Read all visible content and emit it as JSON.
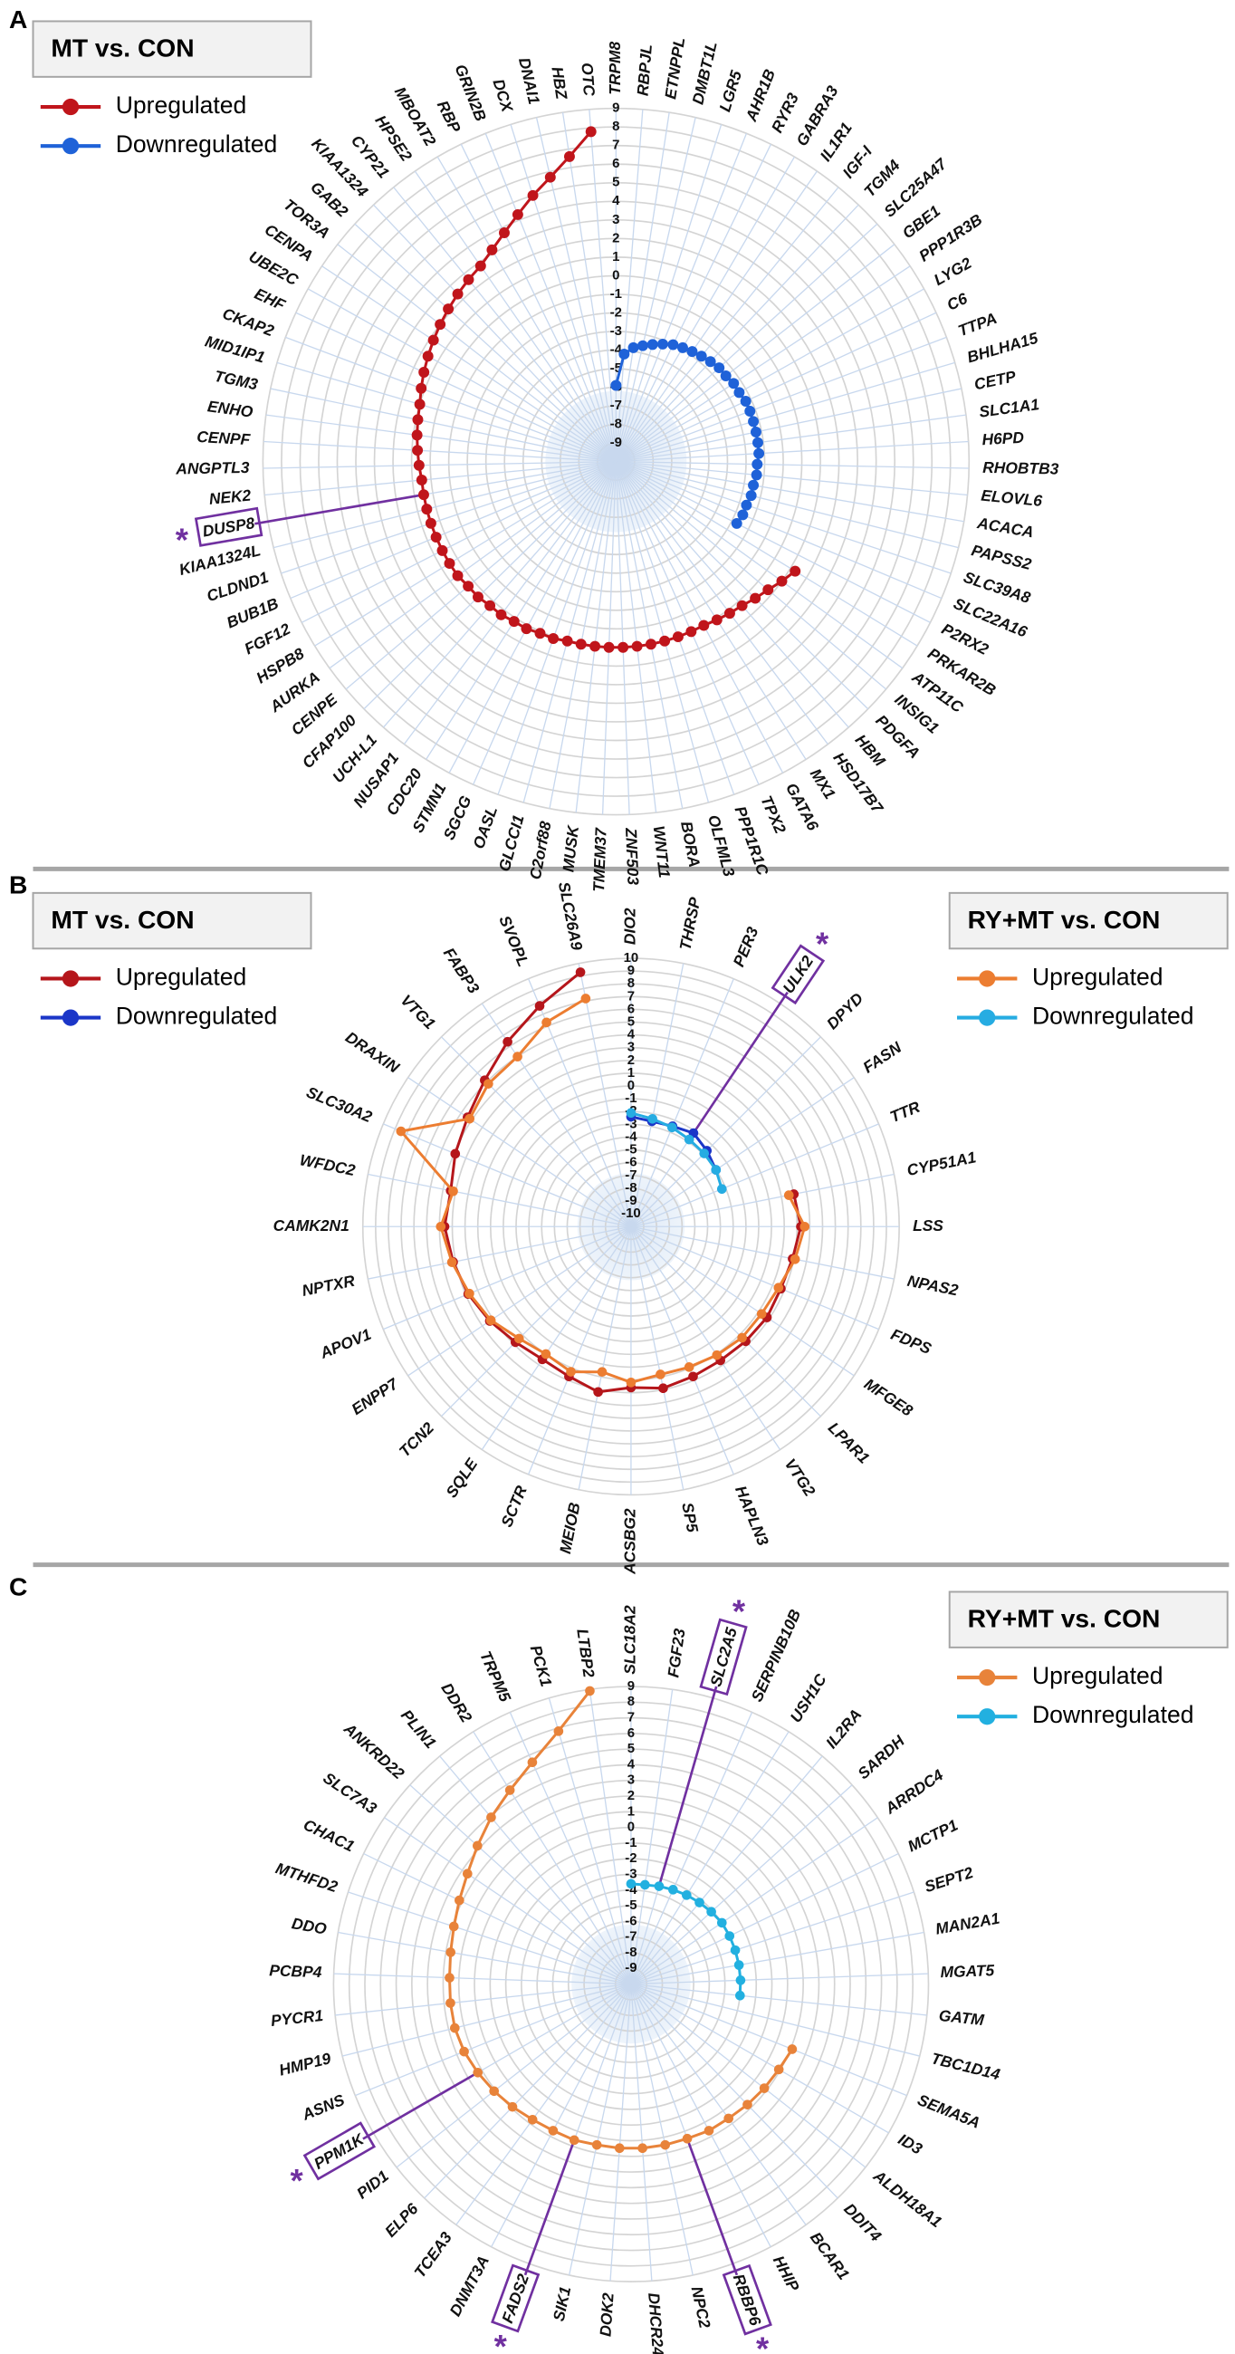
{
  "chart_data": [
    {
      "type": "radar",
      "panel": "A",
      "ylim": [
        -10,
        9
      ],
      "yticks": [
        9,
        8,
        7,
        6,
        5,
        4,
        3,
        2,
        1,
        0,
        -1,
        -2,
        -3,
        -4,
        -5,
        -6,
        -7,
        -8,
        -9
      ],
      "categories": [
        "TRPM8",
        "RBPJL",
        "ETNPPL",
        "DMBT1L",
        "LGR5",
        "AHR1B",
        "RYR3",
        "GABRA3",
        "IL1R1",
        "IGF-I",
        "TGM4",
        "SLC25A47",
        "GBE1",
        "PPP1R3B",
        "LYG2",
        "C6",
        "TTPA",
        "BHLHA15",
        "CETP",
        "SLC1A1",
        "H6PD",
        "RHOBTB3",
        "ELOVL6",
        "ACACA",
        "PAPSS2",
        "SLC39A8",
        "SLC22A16",
        "P2RX2",
        "PRKAR2B",
        "ATP11C",
        "INSIG1",
        "PDGFA",
        "HBM",
        "HSD17B7",
        "MX1",
        "GATA6",
        "TPX2",
        "PPP1R1C",
        "OLFML3",
        "BORA",
        "WNT11",
        "ZNF503",
        "TMEM37",
        "MUSK",
        "C2orf88",
        "GLCCI1",
        "OASL",
        "SGCG",
        "STMN1",
        "CDC20",
        "NUSAP1",
        "UCH-L1",
        "CFAP100",
        "CENPE",
        "AURKA",
        "HSPB8",
        "FGF12",
        "BUB1B",
        "CLDND1",
        "KIAA1324L",
        "DUSP8",
        "NEK2",
        "ANGPTL3",
        "CENPF",
        "ENHO",
        "TGM3",
        "MID1IP1",
        "CKAP2",
        "EHF",
        "UBE2C",
        "CENPA",
        "TOR3A",
        "GAB2",
        "KIAA1324",
        "CYP21",
        "HPSE2",
        "MBOAT2",
        "RBP",
        "GRIN2B",
        "DCX",
        "DNAI1",
        "HBZ",
        "OTC"
      ],
      "highlight": [
        "DUSP8"
      ],
      "highlight_marker": "*",
      "groups": [
        {
          "title": "MT vs. CON",
          "corner": "top-left",
          "series": [
            {
              "name": "Upregulated",
              "color": "#c0151b",
              "values": [
                null,
                null,
                null,
                null,
                null,
                null,
                null,
                null,
                null,
                null,
                null,
                null,
                null,
                null,
                null,
                null,
                null,
                null,
                null,
                null,
                null,
                null,
                null,
                null,
                null,
                null,
                null,
                null,
                1.3,
                1.0,
                0.7,
                0.5,
                0.3,
                0.2,
                0.1,
                0,
                0,
                0,
                0,
                0,
                0,
                0,
                0,
                0,
                0,
                0,
                0.1,
                0.1,
                0.2,
                0.2,
                0.3,
                0.3,
                0.4,
                0.4,
                0.5,
                0.5,
                0.5,
                0.5,
                0.5,
                0.5,
                0.5,
                0.5,
                0.6,
                0.7,
                0.8,
                0.9,
                1.0,
                1.2,
                1.4,
                1.6,
                1.8,
                2.0,
                2.2,
                2.4,
                2.6,
                2.8,
                3.2,
                3.7,
                4.3,
                5.0,
                5.7,
                6.6,
                7.8
              ]
            },
            {
              "name": "Downregulated",
              "color": "#1f62d8",
              "values": [
                -5.9,
                -4.2,
                -3.8,
                -3.6,
                -3.4,
                -3.2,
                -3.0,
                -2.9,
                -2.8,
                -2.7,
                -2.6,
                -2.5,
                -2.5,
                -2.4,
                -2.4,
                -2.3,
                -2.3,
                -2.3,
                -2.3,
                -2.3,
                -2.3,
                -2.4,
                -2.4,
                -2.5,
                -2.5,
                -2.6,
                -2.6,
                -2.7,
                null,
                null,
                null,
                null,
                null,
                null,
                null,
                null,
                null,
                null,
                null,
                null,
                null,
                null,
                null,
                null,
                null,
                null,
                null,
                null,
                null,
                null,
                null,
                null,
                null,
                null,
                null,
                null,
                null,
                null,
                null,
                null,
                null,
                null,
                null,
                null,
                null,
                null,
                null,
                null,
                null,
                null,
                null,
                null,
                null,
                null,
                null,
                null,
                null,
                null,
                null,
                null,
                null,
                null,
                null
              ]
            }
          ]
        }
      ]
    },
    {
      "type": "radar",
      "panel": "B",
      "ylim": [
        -11,
        10
      ],
      "yticks": [
        10,
        9,
        8,
        7,
        6,
        5,
        4,
        3,
        2,
        1,
        0,
        -1,
        -2,
        -3,
        -4,
        -5,
        -6,
        -7,
        -8,
        -9,
        -10
      ],
      "categories": [
        "DIO2",
        "THRSP",
        "PER3",
        "ULK2",
        "DPYD",
        "FASN",
        "TTR",
        "CYP51A1",
        "LSS",
        "NPAS2",
        "FDPS",
        "MFGE8",
        "LPAR1",
        "VTG2",
        "HAPLN3",
        "SP5",
        "ACSBG2",
        "MEIOB",
        "SCTR",
        "SQLE",
        "TCN2",
        "ENPP7",
        "APOV1",
        "NPTXR",
        "CAMK2N1",
        "WFDC2",
        "SLC30A2",
        "DRAXIN",
        "VTG1",
        "FABP3",
        "SVOPL",
        "SLC26A9"
      ],
      "highlight": [
        "ULK2"
      ],
      "highlight_marker": "*",
      "groups": [
        {
          "title": "MT vs. CON",
          "corner": "top-left",
          "series": [
            {
              "name": "Upregulated",
              "color": "#b5161b",
              "values": [
                null,
                null,
                null,
                null,
                null,
                null,
                null,
                2.0,
                2.3,
                1.9,
                1.7,
                1.8,
                1.7,
                1.6,
                1.7,
                1.9,
                1.6,
                2.2,
                1.7,
                1.5,
                1.8,
                2.3,
                2.8,
                3.2,
                3.6,
                3.4,
                3.9,
                4.4,
                5.2,
                6.4,
                7.7,
                9.3
              ]
            },
            {
              "name": "Downregulated",
              "color": "#1b36c8",
              "values": [
                -2.4,
                -2.6,
                -2.5,
                -2.2,
                -2.6,
                -3.0,
                null,
                null,
                null,
                null,
                null,
                null,
                null,
                null,
                null,
                null,
                null,
                null,
                null,
                null,
                null,
                null,
                null,
                null,
                null,
                null,
                null,
                null,
                null,
                null,
                null,
                null
              ]
            }
          ]
        },
        {
          "title": "RY+MT vs. CON",
          "corner": "top-right",
          "series": [
            {
              "name": "Upregulated",
              "color": "#ec7d31",
              "values": [
                null,
                null,
                null,
                null,
                null,
                null,
                null,
                1.6,
                2.6,
                2.1,
                1.5,
                1.3,
                1.3,
                1.1,
                0.9,
                0.8,
                1.2,
                0.6,
                1.3,
                1.0,
                1.4,
                2.2,
                2.7,
                3.3,
                3.9,
                3.2,
                8.5,
                4.2,
                4.8,
                5.0,
                6.3,
                7.2
              ]
            },
            {
              "name": "Downregulated",
              "color": "#26ace2",
              "values": [
                -2.1,
                -2.4,
                -2.6,
                -2.8,
                -2.9,
                -3.0,
                -3.3,
                null,
                null,
                null,
                null,
                null,
                null,
                null,
                null,
                null,
                null,
                null,
                null,
                null,
                null,
                null,
                null,
                null,
                null,
                null,
                null,
                null,
                null,
                null,
                null,
                null
              ]
            }
          ]
        }
      ]
    },
    {
      "type": "radar",
      "panel": "C",
      "ylim": [
        -10,
        9
      ],
      "yticks": [
        9,
        8,
        7,
        6,
        5,
        4,
        3,
        2,
        1,
        0,
        -1,
        -2,
        -3,
        -4,
        -5,
        -6,
        -7,
        -8,
        -9
      ],
      "categories": [
        "SLC18A2",
        "FGF23",
        "SLC2A5",
        "SERPINB10B",
        "USH1C",
        "IL2RA",
        "SARDH",
        "ARRDC4",
        "MCTP1",
        "SEPT2",
        "MAN2A1",
        "MGAT5",
        "GATM",
        "TBC1D14",
        "SEMA5A",
        "ID3",
        "ALDH18A1",
        "DDIT4",
        "BCAR1",
        "HHIP",
        "RBBP6",
        "NPC2",
        "DHCR24",
        "DOK2",
        "SIK1",
        "FADS2",
        "DNMT3A",
        "TCEA3",
        "ELP6",
        "PID1",
        "PPM1K",
        "ASNS",
        "HMP19",
        "PYCR1",
        "PCBP4",
        "DDO",
        "MTHFD2",
        "CHAC1",
        "SLC7A3",
        "ANKRD22",
        "PLIN1",
        "DDR2",
        "TRPM5",
        "PCK1",
        "LTBP2"
      ],
      "highlight": [
        "SLC2A5",
        "PPM1K",
        "FADS2",
        "RBBP6"
      ],
      "highlight_marker": "*",
      "groups": [
        {
          "title": "RY+MT vs. CON",
          "corner": "top-right",
          "series": [
            {
              "name": "Upregulated",
              "color": "#e8833a",
              "values": [
                null,
                null,
                null,
                null,
                null,
                null,
                null,
                null,
                null,
                null,
                null,
                null,
                null,
                null,
                1.1,
                0.9,
                0.8,
                0.7,
                0.6,
                0.6,
                0.5,
                0.5,
                0.5,
                0.5,
                0.5,
                0.6,
                0.6,
                0.7,
                0.9,
                1.1,
                1.3,
                1.5,
                1.6,
                1.6,
                1.6,
                1.7,
                1.9,
                2.2,
                2.6,
                3.2,
                3.9,
                4.6,
                5.5,
                6.8,
                8.9
              ]
            },
            {
              "name": "Downregulated",
              "color": "#22b0e0",
              "values": [
                -3.6,
                -3.6,
                -3.5,
                -3.4,
                -3.3,
                -3.2,
                -3.1,
                -3.0,
                -3.0,
                -3.0,
                -3.0,
                -3.0,
                -3.0,
                null,
                null,
                null,
                null,
                null,
                null,
                null,
                null,
                null,
                null,
                null,
                null,
                null,
                null,
                null,
                null,
                null,
                null,
                null,
                null,
                null,
                null,
                null,
                null,
                null,
                null,
                null,
                null,
                null,
                null,
                null,
                null
              ]
            }
          ]
        }
      ]
    }
  ]
}
